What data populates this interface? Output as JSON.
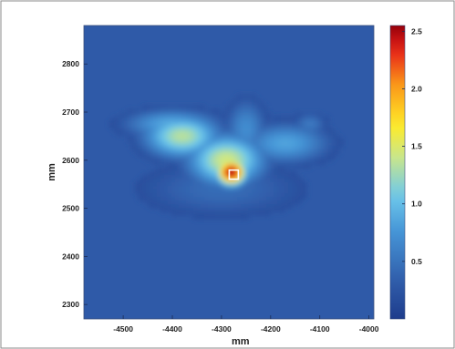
{
  "chart_data": {
    "type": "heatmap",
    "title": "",
    "xlabel": "mm",
    "ylabel": "mm",
    "xlim": [
      -4580,
      -3990
    ],
    "ylim": [
      2270,
      2880
    ],
    "x_ticks": [
      -4500,
      -4400,
      -4300,
      -4200,
      -4100,
      -4000
    ],
    "y_ticks": [
      2300,
      2400,
      2500,
      2600,
      2700,
      2800
    ],
    "colorbar": {
      "range": [
        0,
        2.55
      ],
      "ticks": [
        0.5,
        1.0,
        1.5,
        2.0,
        2.5
      ],
      "tick_labels": [
        "0.5",
        "1.0",
        "1.5",
        "2.0",
        "2.5"
      ],
      "colormap": "jet"
    },
    "features": [
      {
        "name": "peak",
        "x": -4280,
        "y": 2575,
        "value": 2.55,
        "sx": 22,
        "sy": 20
      },
      {
        "name": "core-body",
        "x": -4290,
        "y": 2600,
        "value": 1.45,
        "sx": 55,
        "sy": 38
      },
      {
        "name": "left-lobe",
        "x": -4380,
        "y": 2650,
        "value": 1.35,
        "sx": 55,
        "sy": 32
      },
      {
        "name": "upper-left-arm",
        "x": -4400,
        "y": 2675,
        "value": 0.9,
        "sx": 70,
        "sy": 22
      },
      {
        "name": "right-arm",
        "x": -4170,
        "y": 2635,
        "value": 0.85,
        "sx": 65,
        "sy": 30
      },
      {
        "name": "upper-right-tip",
        "x": -4120,
        "y": 2675,
        "value": 0.55,
        "sx": 25,
        "sy": 18
      },
      {
        "name": "center-up-arm",
        "x": -4250,
        "y": 2665,
        "value": 0.7,
        "sx": 30,
        "sy": 45
      },
      {
        "name": "lower-skirt",
        "x": -4300,
        "y": 2540,
        "value": 0.45,
        "sx": 130,
        "sy": 45
      }
    ],
    "markers": [
      {
        "name": "source-location",
        "x": -4275,
        "y": 2570,
        "shape": "square",
        "color": "#ffffff"
      }
    ],
    "colors": {
      "background": "#2f5aa8",
      "frame": "#ffffff",
      "axis_text": "#222222"
    }
  }
}
